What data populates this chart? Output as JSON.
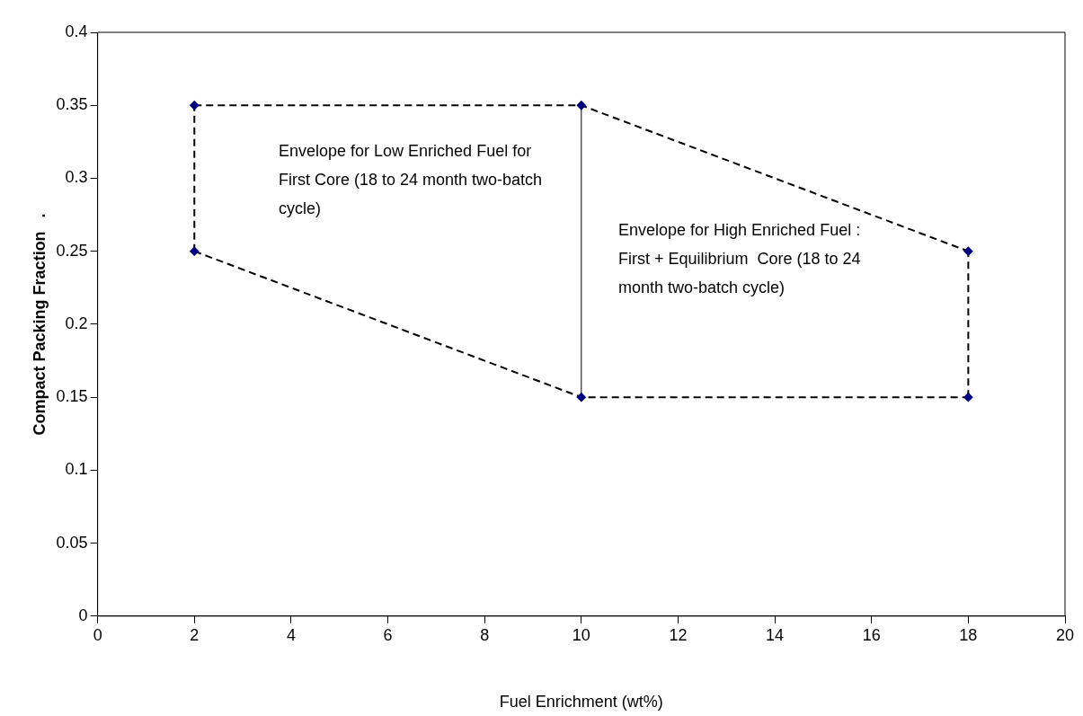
{
  "chart_data": {
    "type": "line",
    "xlabel": "Fuel Enrichment (wt%)",
    "ylabel": "Compact Packing Fraction   .",
    "xlim": [
      0,
      20
    ],
    "xticks": [
      0,
      2,
      4,
      6,
      8,
      10,
      12,
      14,
      16,
      18,
      20
    ],
    "ylim": [
      0,
      0.4
    ],
    "yticks": [
      0,
      0.05,
      0.1,
      0.15,
      0.2,
      0.25,
      0.3,
      0.35,
      0.4
    ],
    "grid": false,
    "legend": false,
    "series": [
      {
        "color": "#000000",
        "marker": "diamond",
        "line_style": "dashed",
        "x": [
          2,
          10,
          18
        ],
        "values": [
          0.35,
          0.35,
          0.25
        ]
      },
      {
        "color": "#000000",
        "marker": "diamond",
        "line_style": "dashed",
        "x": [
          2,
          10,
          18
        ],
        "values": [
          0.25,
          0.15,
          0.15
        ]
      },
      {
        "color": "#000000",
        "marker": "none",
        "line_style": "dashed",
        "x": [
          2,
          2
        ],
        "values": [
          0.25,
          0.35
        ]
      },
      {
        "color": "#000000",
        "marker": "none",
        "line_style": "dashed",
        "x": [
          18,
          18
        ],
        "values": [
          0.15,
          0.25
        ]
      },
      {
        "color": "#000000",
        "marker": "none",
        "line_style": "solid",
        "x": [
          10,
          10
        ],
        "values": [
          0.15,
          0.35
        ]
      }
    ],
    "annotations": [
      "Envelope for Low Enriched Fuel for First Core (18 to 24 month two-batch cycle)",
      "Envelope for High Enriched Fuel : First + Equilibrium  Core (18 to 24 month two-batch cycle)"
    ]
  }
}
